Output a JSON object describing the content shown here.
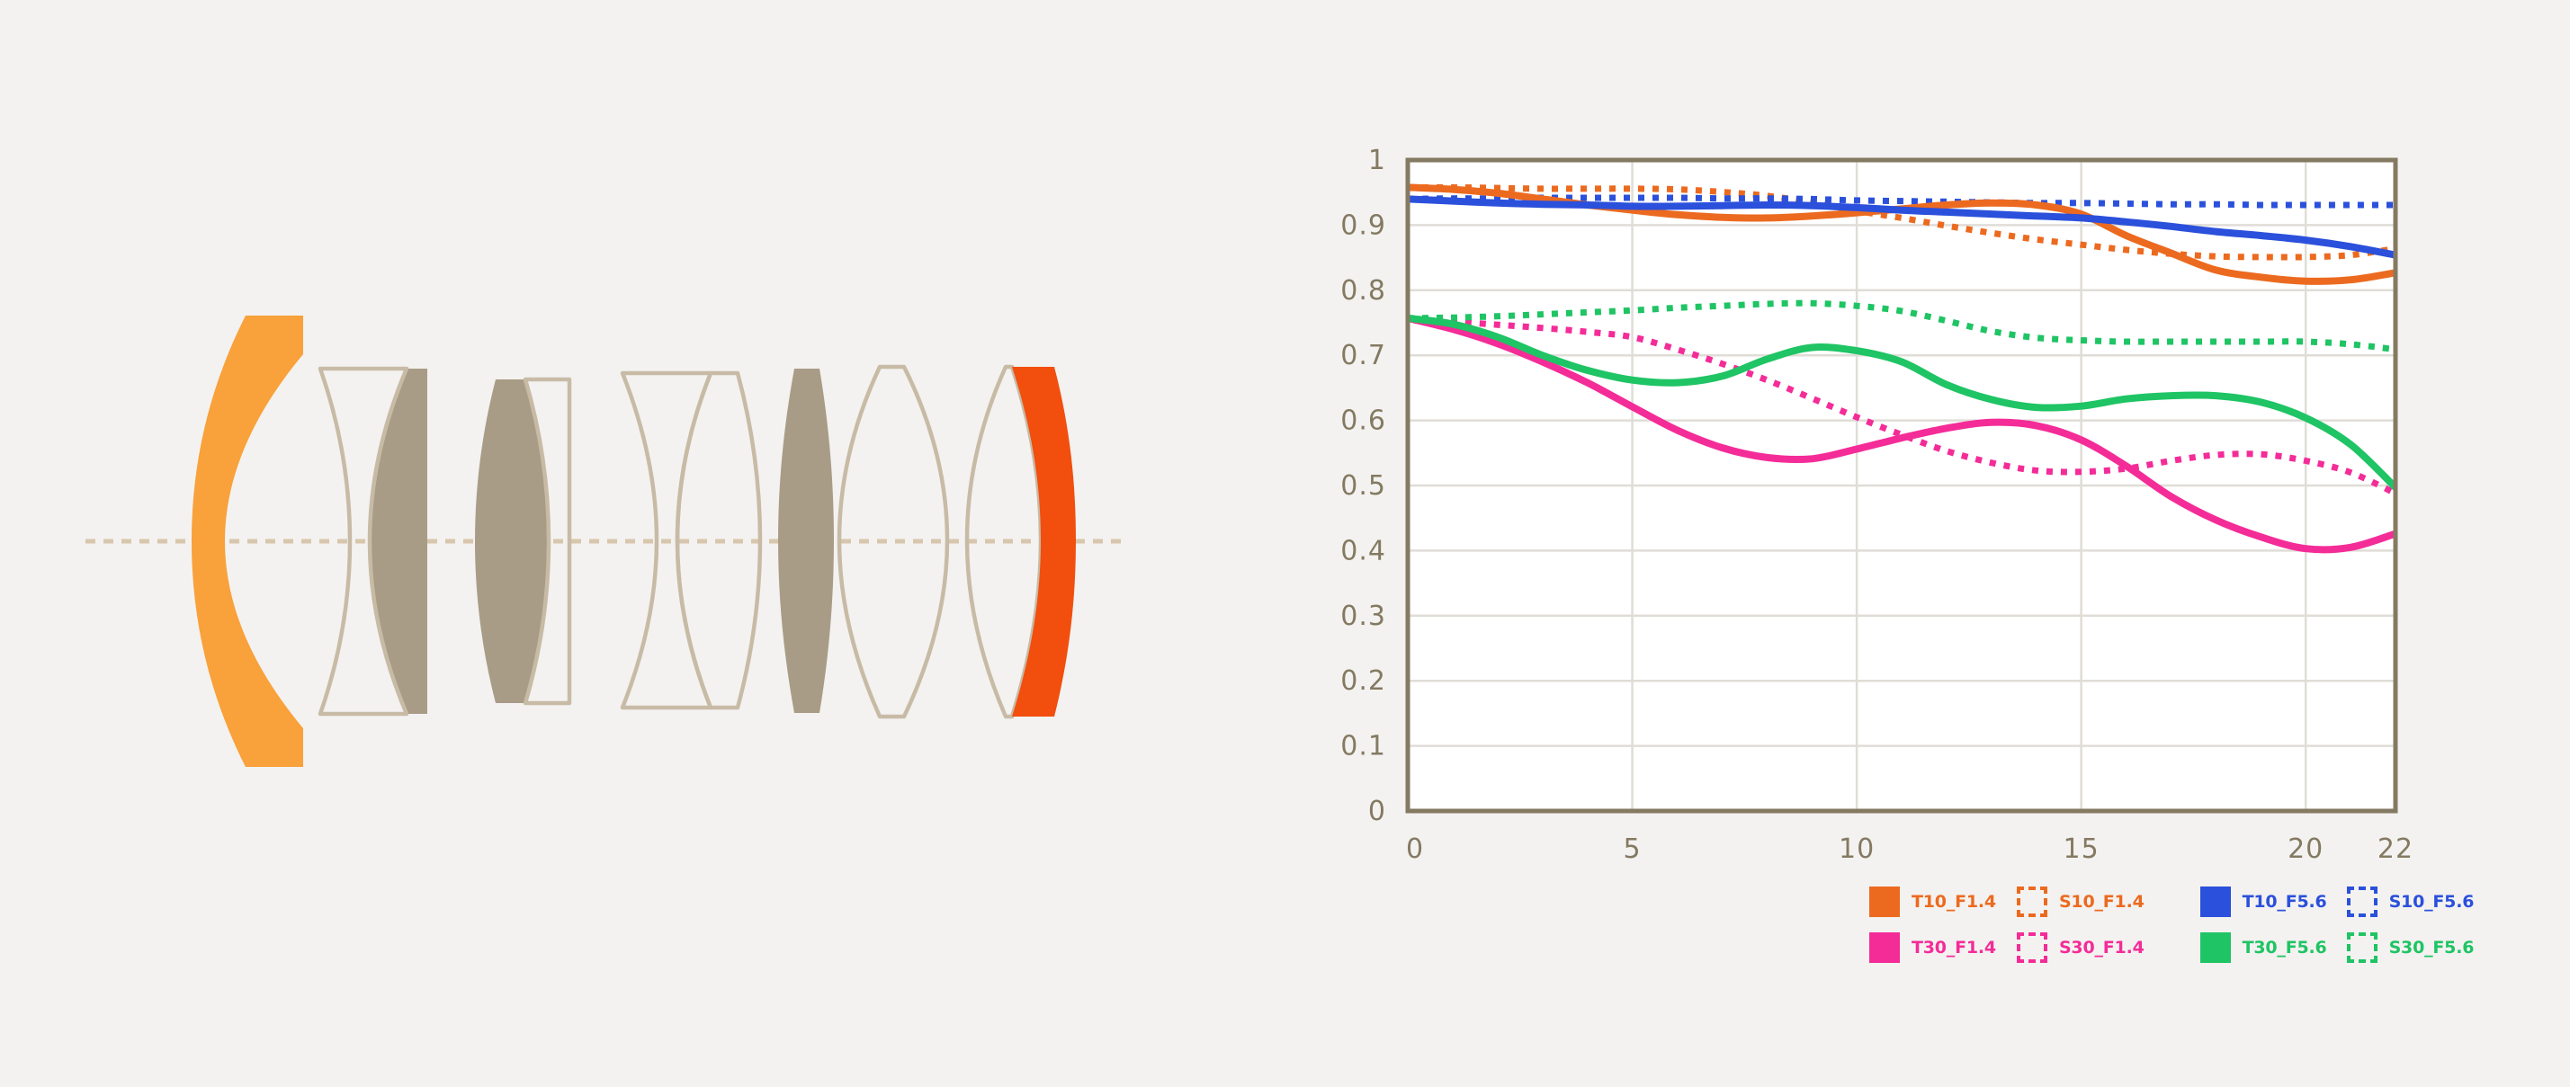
{
  "page": {
    "background": "#F3F2F0",
    "description": "Lens construction diagram and MTF chart infographic"
  },
  "lens_diagram": {
    "colors": {
      "front_element": "#F9A13A",
      "rear_element": "#F24E0E",
      "filled_glass": "#A99C87",
      "outline": "#C8BBA6",
      "axis_line": "#D8C6AD"
    },
    "elements": [
      {
        "id": "element-1",
        "type": "front-meniscus",
        "fill": "front_element"
      },
      {
        "id": "element-2",
        "type": "biconcave-outline",
        "fill": "none"
      },
      {
        "id": "element-3",
        "type": "convex-filled",
        "fill": "filled_glass"
      },
      {
        "id": "element-4",
        "type": "biconvex-filled",
        "fill": "filled_glass"
      },
      {
        "id": "element-5",
        "type": "plano-outline",
        "fill": "none"
      },
      {
        "id": "element-6",
        "type": "biconcave-outline",
        "fill": "none"
      },
      {
        "id": "element-7",
        "type": "biconvex-outline",
        "fill": "none"
      },
      {
        "id": "element-8",
        "type": "thin-biconvex-filled",
        "fill": "filled_glass"
      },
      {
        "id": "element-9",
        "type": "biconvex-outline",
        "fill": "none"
      },
      {
        "id": "element-10",
        "type": "meniscus-outline",
        "fill": "none"
      },
      {
        "id": "element-11",
        "type": "rear-meniscus",
        "fill": "rear_element"
      }
    ]
  },
  "chart_data": {
    "type": "line",
    "title": "",
    "xlabel": "",
    "ylabel": "",
    "xlim": [
      0,
      22
    ],
    "ylim": [
      0,
      1
    ],
    "grid": true,
    "legend_position": "bottom-right",
    "plot_background": "#FFFFFF",
    "axis_color": "#847A62",
    "grid_color": "#E0DDD7",
    "tick_label_color": "#847A62",
    "x_ticks": [
      {
        "v": 0,
        "label": "0"
      },
      {
        "v": 5,
        "label": "5"
      },
      {
        "v": 10,
        "label": "10"
      },
      {
        "v": 15,
        "label": "15"
      },
      {
        "v": 20,
        "label": "20"
      },
      {
        "v": 22,
        "label": "22"
      }
    ],
    "y_ticks": [
      {
        "v": 1,
        "label": "1"
      },
      {
        "v": 0.9,
        "label": "0.9"
      },
      {
        "v": 0.8,
        "label": "0.8"
      },
      {
        "v": 0.7,
        "label": "0.7"
      },
      {
        "v": 0.6,
        "label": "0.6"
      },
      {
        "v": 0.5,
        "label": "0.5"
      },
      {
        "v": 0.4,
        "label": "0.4"
      },
      {
        "v": 0.3,
        "label": "0.3"
      },
      {
        "v": 0.2,
        "label": "0.2"
      },
      {
        "v": 0.1,
        "label": "0.1"
      },
      {
        "v": 0,
        "label": "0"
      }
    ],
    "x": [
      0,
      1,
      2,
      3,
      4,
      5,
      6,
      7,
      8,
      9,
      10,
      11,
      12,
      13,
      14,
      15,
      16,
      17,
      18,
      19,
      20,
      21,
      22
    ],
    "series": [
      {
        "name": "T10_F1.4",
        "color": "#EC6A1F",
        "style": "solid",
        "values": [
          0.958,
          0.955,
          0.949,
          0.94,
          0.931,
          0.923,
          0.916,
          0.912,
          0.911,
          0.914,
          0.919,
          0.925,
          0.931,
          0.934,
          0.931,
          0.917,
          0.884,
          0.857,
          0.831,
          0.82,
          0.814,
          0.816,
          0.827
        ]
      },
      {
        "name": "S10_F1.4",
        "color": "#EC6A1F",
        "style": "dotted",
        "values": [
          0.958,
          0.958,
          0.957,
          0.956,
          0.956,
          0.956,
          0.955,
          0.951,
          0.945,
          0.935,
          0.922,
          0.911,
          0.899,
          0.888,
          0.878,
          0.87,
          0.862,
          0.856,
          0.852,
          0.851,
          0.851,
          0.854,
          0.864
        ]
      },
      {
        "name": "T10_F5.6",
        "color": "#2B50DB",
        "style": "solid",
        "values": [
          0.94,
          0.937,
          0.934,
          0.932,
          0.931,
          0.929,
          0.929,
          0.93,
          0.931,
          0.93,
          0.927,
          0.923,
          0.92,
          0.917,
          0.914,
          0.911,
          0.905,
          0.898,
          0.89,
          0.884,
          0.877,
          0.867,
          0.854
        ]
      },
      {
        "name": "S10_F5.6",
        "color": "#2B50DB",
        "style": "dotted",
        "values": [
          0.94,
          0.941,
          0.941,
          0.942,
          0.942,
          0.942,
          0.942,
          0.941,
          0.941,
          0.94,
          0.938,
          0.937,
          0.936,
          0.935,
          0.934,
          0.934,
          0.933,
          0.932,
          0.932,
          0.931,
          0.931,
          0.931,
          0.931
        ]
      },
      {
        "name": "T30_F1.4",
        "color": "#F42C98",
        "style": "solid",
        "values": [
          0.757,
          0.74,
          0.718,
          0.69,
          0.658,
          0.621,
          0.585,
          0.558,
          0.543,
          0.541,
          0.556,
          0.573,
          0.588,
          0.597,
          0.592,
          0.57,
          0.53,
          0.483,
          0.447,
          0.421,
          0.403,
          0.405,
          0.426
        ]
      },
      {
        "name": "S30_F1.4",
        "color": "#F42C98",
        "style": "dotted",
        "values": [
          0.757,
          0.752,
          0.747,
          0.742,
          0.736,
          0.728,
          0.709,
          0.687,
          0.662,
          0.634,
          0.605,
          0.578,
          0.553,
          0.535,
          0.523,
          0.521,
          0.526,
          0.538,
          0.547,
          0.548,
          0.538,
          0.52,
          0.488
        ]
      },
      {
        "name": "T30_F5.6",
        "color": "#1FC464",
        "style": "solid",
        "values": [
          0.757,
          0.748,
          0.728,
          0.7,
          0.677,
          0.662,
          0.658,
          0.668,
          0.694,
          0.712,
          0.707,
          0.69,
          0.655,
          0.632,
          0.62,
          0.622,
          0.633,
          0.638,
          0.638,
          0.628,
          0.604,
          0.563,
          0.497
        ]
      },
      {
        "name": "S30_F5.6",
        "color": "#1FC464",
        "style": "dotted",
        "values": [
          0.757,
          0.758,
          0.76,
          0.763,
          0.766,
          0.769,
          0.773,
          0.776,
          0.779,
          0.78,
          0.776,
          0.768,
          0.753,
          0.737,
          0.727,
          0.723,
          0.721,
          0.721,
          0.721,
          0.721,
          0.721,
          0.717,
          0.709
        ]
      }
    ],
    "legend": {
      "rows": [
        [
          "T10_F1.4",
          "S10_F1.4",
          "T10_F5.6",
          "S10_F5.6"
        ],
        [
          "T30_F1.4",
          "S30_F1.4",
          "T30_F5.6",
          "S30_F5.6"
        ]
      ]
    }
  }
}
